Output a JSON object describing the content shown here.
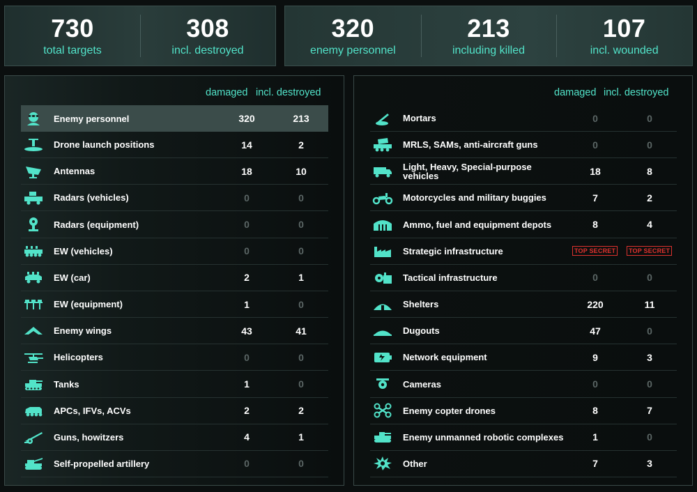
{
  "summary_left": [
    {
      "value": "730",
      "label": "total targets"
    },
    {
      "value": "308",
      "label": "incl. destroyed"
    }
  ],
  "summary_right": [
    {
      "value": "320",
      "label": "enemy personnel"
    },
    {
      "value": "213",
      "label": "including killed"
    },
    {
      "value": "107",
      "label": "incl. wounded"
    }
  ],
  "table_left": {
    "col_damaged": "damaged",
    "col_destroyed": "incl. destroyed",
    "rows": [
      {
        "icon": "enemy-personnel-icon",
        "label": "Enemy personnel",
        "damaged": "320",
        "destroyed": "213"
      },
      {
        "icon": "drone-launch-icon",
        "label": "Drone launch positions",
        "damaged": "14",
        "destroyed": "2"
      },
      {
        "icon": "antenna-icon",
        "label": "Antennas",
        "damaged": "18",
        "destroyed": "10"
      },
      {
        "icon": "radar-vehicle-icon",
        "label": "Radars (vehicles)",
        "damaged": "0",
        "destroyed": "0"
      },
      {
        "icon": "radar-equipment-icon",
        "label": "Radars (equipment)",
        "damaged": "0",
        "destroyed": "0"
      },
      {
        "icon": "ew-vehicle-icon",
        "label": "EW (vehicles)",
        "damaged": "0",
        "destroyed": "0"
      },
      {
        "icon": "ew-car-icon",
        "label": "EW (car)",
        "damaged": "2",
        "destroyed": "1"
      },
      {
        "icon": "ew-equipment-icon",
        "label": "EW (equipment)",
        "damaged": "1",
        "destroyed": "0"
      },
      {
        "icon": "enemy-wings-icon",
        "label": "Enemy wings",
        "damaged": "43",
        "destroyed": "41"
      },
      {
        "icon": "helicopter-icon",
        "label": "Helicopters",
        "damaged": "0",
        "destroyed": "0"
      },
      {
        "icon": "tank-icon",
        "label": "Tanks",
        "damaged": "1",
        "destroyed": "0"
      },
      {
        "icon": "apc-icon",
        "label": "APCs, IFVs, ACVs",
        "damaged": "2",
        "destroyed": "2"
      },
      {
        "icon": "howitzer-icon",
        "label": "Guns, howitzers",
        "damaged": "4",
        "destroyed": "1"
      },
      {
        "icon": "self-propelled-artillery-icon",
        "label": "Self-propelled artillery",
        "damaged": "0",
        "destroyed": "0"
      }
    ]
  },
  "table_right": {
    "col_damaged": "damaged",
    "col_destroyed": "incl. destroyed",
    "rows": [
      {
        "icon": "mortar-icon",
        "label": "Mortars",
        "damaged": "0",
        "destroyed": "0"
      },
      {
        "icon": "mrls-icon",
        "label": "MRLS, SAMs, anti-aircraft guns",
        "damaged": "0",
        "destroyed": "0"
      },
      {
        "icon": "truck-icon",
        "label": "Light, Heavy, Special-purpose vehicles",
        "damaged": "18",
        "destroyed": "8"
      },
      {
        "icon": "motorcycle-icon",
        "label": "Motorcycles and military buggies",
        "damaged": "7",
        "destroyed": "2"
      },
      {
        "icon": "depot-icon",
        "label": "Ammo, fuel and equipment depots",
        "damaged": "8",
        "destroyed": "4"
      },
      {
        "icon": "factory-icon",
        "label": "Strategic infrastructure",
        "damaged": "TOP SECRET",
        "destroyed": "TOP SECRET"
      },
      {
        "icon": "gear-building-icon",
        "label": "Tactical infrastructure",
        "damaged": "0",
        "destroyed": "0"
      },
      {
        "icon": "shelter-icon",
        "label": "Shelters",
        "damaged": "220",
        "destroyed": "11"
      },
      {
        "icon": "dugout-icon",
        "label": "Dugouts",
        "damaged": "47",
        "destroyed": "0"
      },
      {
        "icon": "network-equipment-icon",
        "label": "Network equipment",
        "damaged": "9",
        "destroyed": "3"
      },
      {
        "icon": "camera-icon",
        "label": "Cameras",
        "damaged": "0",
        "destroyed": "0"
      },
      {
        "icon": "copter-drone-icon",
        "label": "Enemy copter drones",
        "damaged": "8",
        "destroyed": "7"
      },
      {
        "icon": "robotic-complex-icon",
        "label": "Enemy unmanned robotic complexes",
        "damaged": "1",
        "destroyed": "0"
      },
      {
        "icon": "explosion-icon",
        "label": "Other",
        "damaged": "7",
        "destroyed": "3"
      }
    ]
  },
  "colors": {
    "accent": "#52e3c9",
    "zero": "#5b6665",
    "secret": "#e0322e",
    "highlight_row": "#3b4c4a"
  }
}
